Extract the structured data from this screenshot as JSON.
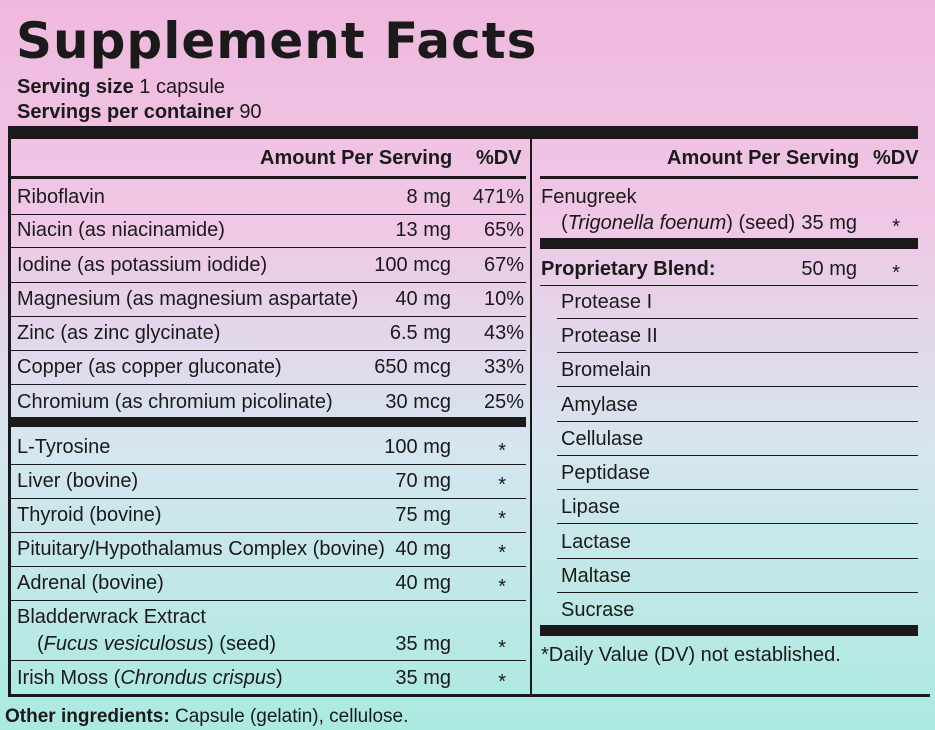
{
  "title": "Supplement Facts",
  "serving_size_label": "Serving size",
  "serving_size_value": "1 capsule",
  "servings_label": "Servings per container",
  "servings_value": "90",
  "left": {
    "header_amount": "Amount Per Serving",
    "header_dv": "%DV",
    "vitamins": [
      {
        "name": "Riboflavin",
        "amount": "8 mg",
        "dv": "471%"
      },
      {
        "name": "Niacin (as niacinamide)",
        "amount": "13 mg",
        "dv": "65%"
      },
      {
        "name": "Iodine (as potassium iodide)",
        "amount": "100 mcg",
        "dv": "67%"
      },
      {
        "name": "Magnesium (as magnesium aspartate)",
        "amount": "40 mg",
        "dv": "10%"
      },
      {
        "name": "Zinc (as zinc glycinate)",
        "amount": "6.5 mg",
        "dv": "43%"
      },
      {
        "name": "Copper (as copper gluconate)",
        "amount": "650 mcg",
        "dv": "33%"
      },
      {
        "name": "Chromium (as chromium picolinate)",
        "amount": "30 mcg",
        "dv": "25%"
      }
    ],
    "others": [
      {
        "name": "L-Tyrosine",
        "amount": "100 mg",
        "dv": "*"
      },
      {
        "name": "Liver (bovine)",
        "amount": "70 mg",
        "dv": "*"
      },
      {
        "name": "Thyroid (bovine)",
        "amount": "75 mg",
        "dv": "*"
      },
      {
        "name": "Pituitary/Hypothalamus Complex (bovine)",
        "amount": "40 mg",
        "dv": "*"
      },
      {
        "name": "Adrenal (bovine)",
        "amount": "40 mg",
        "dv": "*"
      }
    ],
    "bladderwrack": {
      "name": "Bladderwrack Extract",
      "open": "(",
      "latin": "Fucus vesiculosus",
      "close": ") (seed)",
      "amount": "35 mg",
      "dv": "*"
    },
    "irish_moss": {
      "name": "Irish Moss (",
      "latin": "Chrondus crispus",
      "close": ")",
      "amount": "35 mg",
      "dv": "*"
    }
  },
  "right": {
    "header_amount": "Amount Per Serving",
    "header_dv": "%DV",
    "fenugreek": {
      "name": "Fenugreek",
      "open": "(",
      "latin": "Trigonella foenum",
      "close": ") (seed)",
      "amount": "35 mg",
      "dv": "*"
    },
    "blend": {
      "name": "Proprietary Blend:",
      "amount": "50 mg",
      "dv": "*"
    },
    "enzymes": [
      "Protease I",
      "Protease II",
      "Bromelain",
      "Amylase",
      "Cellulase",
      "Peptidase",
      "Lipase",
      "Lactase",
      "Maltase",
      "Sucrase"
    ],
    "footnote": "*Daily Value (DV) not established."
  },
  "other_ingredients_label": "Other ingredients:",
  "other_ingredients_value": "Capsule (gelatin), cellulose."
}
